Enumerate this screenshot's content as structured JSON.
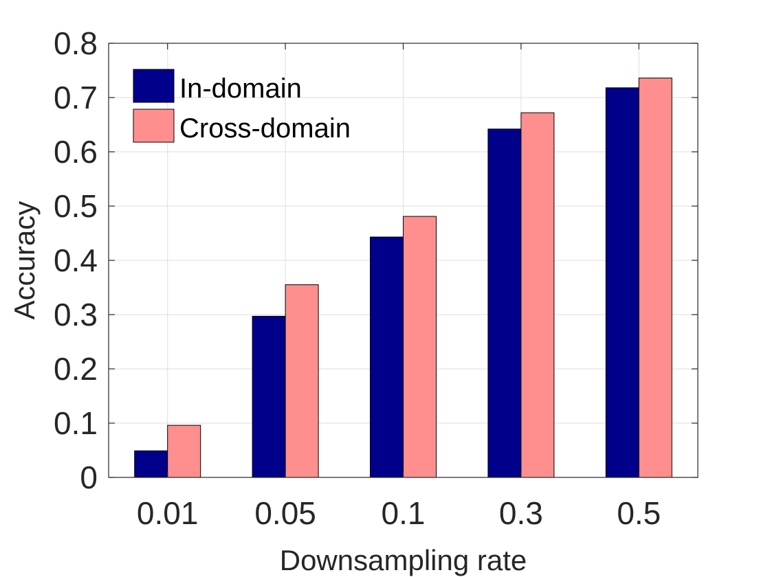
{
  "chart_data": {
    "type": "bar",
    "categories": [
      "0.01",
      "0.05",
      "0.1",
      "0.3",
      "0.5"
    ],
    "series": [
      {
        "name": "In-domain",
        "values": [
          0.049,
          0.297,
          0.443,
          0.642,
          0.718
        ],
        "color": "#00008B"
      },
      {
        "name": "Cross-domain",
        "values": [
          0.096,
          0.355,
          0.481,
          0.672,
          0.736
        ],
        "color": "#FF8F8F"
      }
    ],
    "xlabel": "Downsampling rate",
    "ylabel": "Accuracy",
    "ylim": [
      0,
      0.8
    ],
    "yticks": [
      "0",
      "0.1",
      "0.2",
      "0.3",
      "0.4",
      "0.5",
      "0.6",
      "0.7",
      "0.8"
    ],
    "grid": true,
    "legend_position": "top-left"
  }
}
